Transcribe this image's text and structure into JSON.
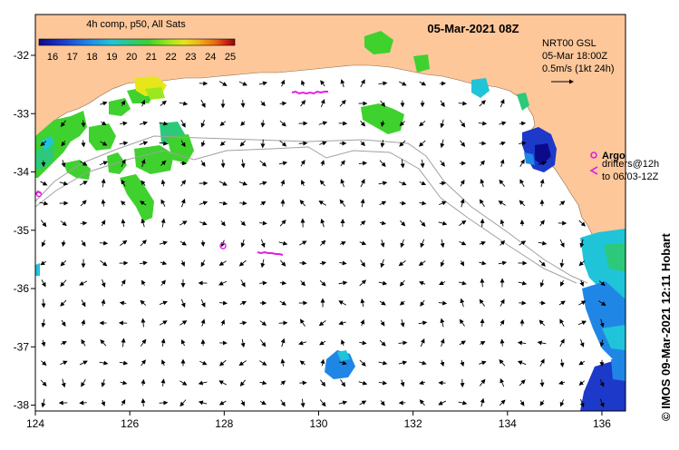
{
  "title": "05-Mar-2021 08Z",
  "colorbar": {
    "title": "4h comp, p50, All Sats",
    "ticks": [
      "16",
      "17",
      "18",
      "19",
      "20",
      "21",
      "22",
      "23",
      "24",
      "25"
    ],
    "colors": [
      "#0b0b8a",
      "#1c39c9",
      "#1f86e6",
      "#20c4d8",
      "#2cc97a",
      "#3fd12e",
      "#9be81c",
      "#e6e61a",
      "#f0b018",
      "#e86a14",
      "#c82010",
      "#8a0a0a"
    ]
  },
  "current_legend": {
    "line1": "NRT00 GSL",
    "line2": "05-Mar 18:00Z",
    "line3": "0.5m/s (1kt 24h)"
  },
  "argo_legend": {
    "label": "Argo",
    "line1": "drifters@12h",
    "line2": "to 06/03-12Z"
  },
  "credit": "© IMOS 09-Mar-2021 12:11 Hobart",
  "axes": {
    "x_ticks": [
      "124",
      "126",
      "128",
      "130",
      "132",
      "134",
      "136"
    ],
    "y_ticks": [
      "-32",
      "-33",
      "-34",
      "-35",
      "-36",
      "-37",
      "-38"
    ],
    "xlim": [
      124,
      136.5
    ],
    "ylim": [
      -38.1,
      -31.3
    ]
  },
  "colors": {
    "land": "#fdc79a",
    "ocean": "#ffffff",
    "argo": "#e020e0",
    "shelf": "#a0a0a0"
  }
}
